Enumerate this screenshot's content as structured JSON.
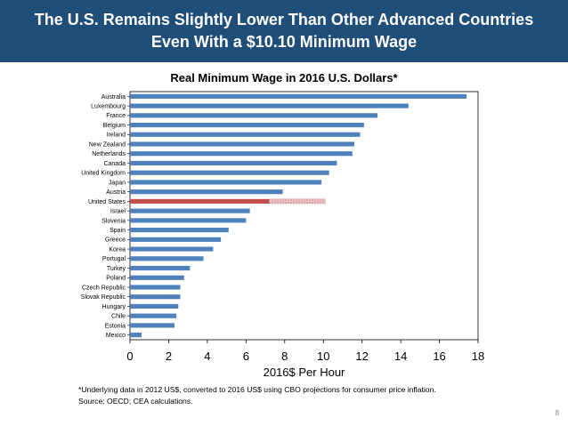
{
  "slide": {
    "title_line1": "The U.S. Remains Slightly Lower Than Other Advanced Countries",
    "title_line2": "Even With a $10.10 Minimum Wage",
    "footnote_line1": "*Underlying data in 2012 US$, converted to 2016 US$ using CBO projections for consumer price inflation.",
    "footnote_line2": "Source: OECD; CEA calculations.",
    "page_number": "8"
  },
  "colors": {
    "banner": "#1f4e79",
    "bar": "#4f81bd",
    "us_bar": "#c0504d",
    "us_projection": "#d99694"
  },
  "chart_data": {
    "type": "bar",
    "orientation": "horizontal",
    "title": "Real Minimum Wage in 2016 U.S. Dollars*",
    "xlabel": "2016$ Per Hour",
    "ylabel": "",
    "xlim": [
      0,
      18
    ],
    "xticks": [
      0,
      2,
      4,
      6,
      8,
      10,
      12,
      14,
      16,
      18
    ],
    "categories": [
      "Australia",
      "Luxembourg",
      "France",
      "Belgium",
      "Ireland",
      "New Zealand",
      "Netherlands",
      "Canada",
      "United Kingdom",
      "Japan",
      "Austria",
      "United States",
      "Israel",
      "Slovenia",
      "Spain",
      "Greece",
      "Korea",
      "Portugal",
      "Turkey",
      "Poland",
      "Czech Republic",
      "Slovak Republic",
      "Hungary",
      "Chile",
      "Estonia",
      "Mexico"
    ],
    "values": [
      17.4,
      14.4,
      12.8,
      12.1,
      11.9,
      11.6,
      11.5,
      10.7,
      10.3,
      9.9,
      7.9,
      7.2,
      6.2,
      6.0,
      5.1,
      4.7,
      4.3,
      3.8,
      3.1,
      2.8,
      2.6,
      2.6,
      2.5,
      2.4,
      2.3,
      0.6
    ],
    "highlight": {
      "category": "United States",
      "current": 7.2,
      "proposed": 10.1,
      "proposed_style": "hatched"
    }
  }
}
